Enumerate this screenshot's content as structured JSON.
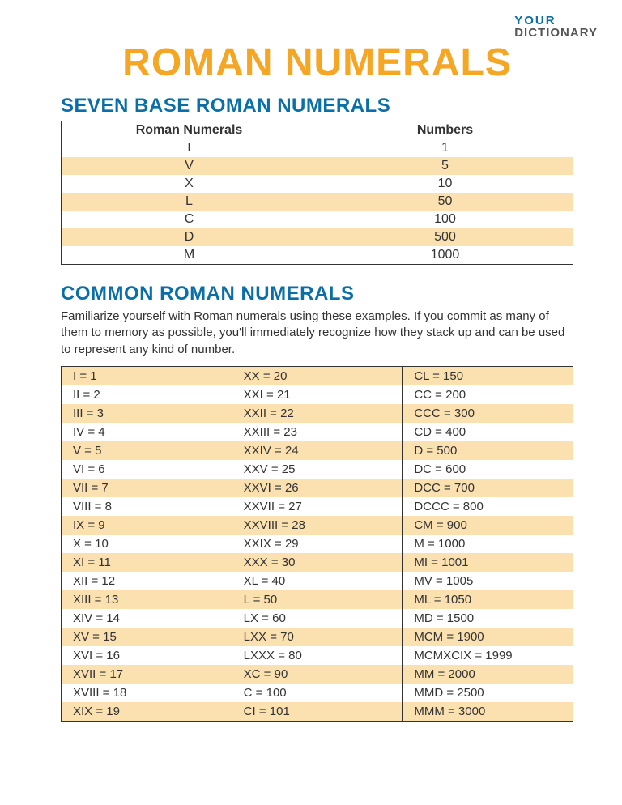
{
  "logo": {
    "line1": "YOUR",
    "line2": "DICTIONARY"
  },
  "title": "ROMAN NUMERALS",
  "section1": {
    "heading": "SEVEN BASE ROMAN NUMERALS",
    "col1": "Roman Numerals",
    "col2": "Numbers",
    "rows": [
      {
        "r": "I",
        "n": "1"
      },
      {
        "r": "V",
        "n": "5"
      },
      {
        "r": "X",
        "n": "10"
      },
      {
        "r": "L",
        "n": "50"
      },
      {
        "r": "C",
        "n": "100"
      },
      {
        "r": "D",
        "n": "500"
      },
      {
        "r": "M",
        "n": "1000"
      }
    ]
  },
  "section2": {
    "heading": "COMMON ROMAN NUMERALS",
    "intro": "Familiarize yourself with Roman numerals using these examples. If you commit as many of them to memory as possible, you'll immediately recognize how they stack up and can be used to represent any kind of number.",
    "columns": [
      [
        "I = 1",
        "II = 2",
        "III = 3",
        "IV = 4",
        "V = 5",
        "VI = 6",
        "VII = 7",
        "VIII = 8",
        "IX = 9",
        "X = 10",
        "XI = 11",
        "XII = 12",
        "XIII = 13",
        "XIV = 14",
        "XV = 15",
        "XVI = 16",
        "XVII = 17",
        "XVIII = 18",
        "XIX = 19"
      ],
      [
        "XX = 20",
        "XXI = 21",
        "XXII = 22",
        "XXIII = 23",
        "XXIV = 24",
        "XXV = 25",
        "XXVI = 26",
        "XXVII = 27",
        "XXVIII = 28",
        "XXIX = 29",
        "XXX = 30",
        "XL = 40",
        "L = 50",
        "LX = 60",
        "LXX = 70",
        "LXXX = 80",
        "XC = 90",
        "C = 100",
        "CI = 101"
      ],
      [
        "CL = 150",
        "CC = 200",
        "CCC = 300",
        "CD = 400",
        "D = 500",
        "DC = 600",
        "DCC = 700",
        "DCCC = 800",
        "CM = 900",
        "M = 1000",
        "MI = 1001",
        "MV = 1005",
        "ML = 1050",
        "MD = 1500",
        "MCM = 1900",
        "MCMXCIX = 1999",
        "MM = 2000",
        "MMD = 2500",
        "MMM = 3000"
      ]
    ]
  },
  "colors": {
    "title": "#f5a623",
    "heading": "#0a6ea8",
    "stripe": "#fbe0b0",
    "border": "#333333",
    "text": "#333333",
    "background": "#ffffff"
  }
}
